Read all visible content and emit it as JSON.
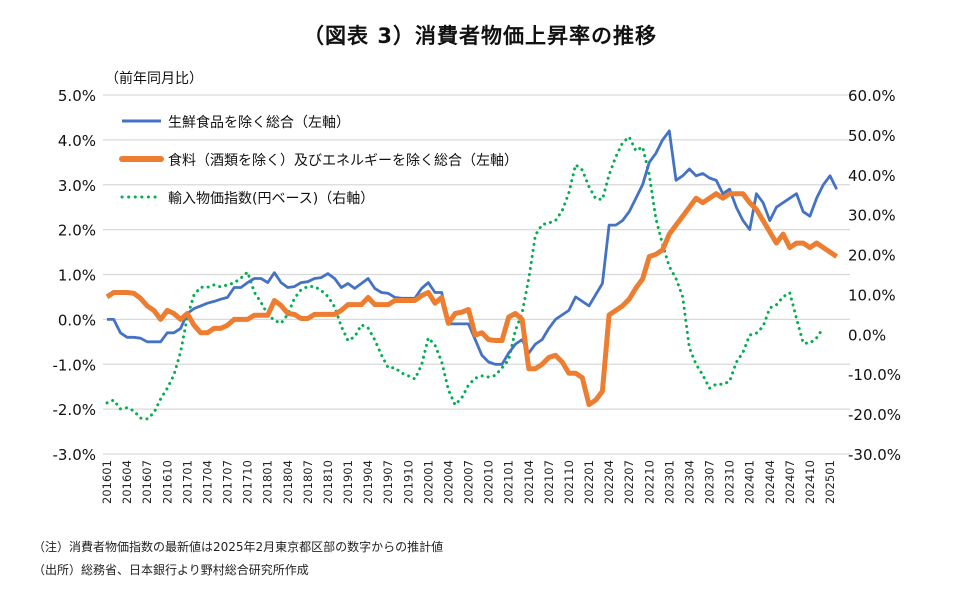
{
  "chart_data": {
    "type": "line",
    "title": "（図表 3）消費者物価上昇率の推移",
    "unit_label": "（前年同月比）",
    "xlabel": "",
    "ylabel_left": "",
    "ylabel_right": "",
    "grid": true,
    "legend_position": "top-left",
    "y_left": {
      "min": -3.0,
      "max": 5.0,
      "step": 1.0,
      "tick_labels": [
        "5.0%",
        "4.0%",
        "3.0%",
        "2.0%",
        "1.0%",
        "0.0%",
        "-1.0%",
        "-2.0%",
        "-3.0%"
      ]
    },
    "y_right": {
      "min": -30.0,
      "max": 60.0,
      "step": 10.0,
      "tick_labels": [
        "60.0%",
        "50.0%",
        "40.0%",
        "30.0%",
        "20.0%",
        "10.0%",
        "0.0%",
        "-10.0%",
        "-20.0%",
        "-30.0%"
      ]
    },
    "x_tick_labels": [
      "201601",
      "201604",
      "201607",
      "201610",
      "201701",
      "201704",
      "201707",
      "201710",
      "201801",
      "201804",
      "201807",
      "201810",
      "201901",
      "201904",
      "201907",
      "201910",
      "202001",
      "202004",
      "202007",
      "202010",
      "202101",
      "202104",
      "202107",
      "202110",
      "202201",
      "202204",
      "202207",
      "202210",
      "202301",
      "202304",
      "202307",
      "202310",
      "202401",
      "202404",
      "202407",
      "202410",
      "202501"
    ],
    "x_start": "201601",
    "x_end": "202502",
    "series": [
      {
        "name": "生鮮食品を除く総合（左軸）",
        "axis": "left",
        "color": "#4472C4",
        "style": "solid",
        "values": [
          0,
          0,
          -0.3,
          -0.4,
          -0.4,
          -0.42,
          -0.5,
          -0.5,
          -0.5,
          -0.3,
          -0.3,
          -0.2,
          0.13,
          0.24,
          0.3,
          0.36,
          0.4,
          0.45,
          0.49,
          0.71,
          0.71,
          0.82,
          0.91,
          0.91,
          0.82,
          1.04,
          0.82,
          0.71,
          0.73,
          0.82,
          0.84,
          0.91,
          0.93,
          1.02,
          0.91,
          0.71,
          0.8,
          0.69,
          0.8,
          0.91,
          0.69,
          0.6,
          0.58,
          0.49,
          0.47,
          0.47,
          0.47,
          0.69,
          0.82,
          0.6,
          0.6,
          -0.1,
          -0.1,
          -0.1,
          -0.1,
          -0.45,
          -0.8,
          -0.95,
          -1.0,
          -1.0,
          -0.75,
          -0.55,
          -0.45,
          -0.75,
          -0.55,
          -0.45,
          -0.2,
          0.0,
          0.1,
          0.2,
          0.5,
          0.4,
          0.3,
          0.55,
          0.8,
          2.1,
          2.1,
          2.2,
          2.4,
          2.7,
          3.0,
          3.5,
          3.7,
          4.0,
          4.2,
          3.1,
          3.2,
          3.35,
          3.2,
          3.25,
          3.15,
          3.1,
          2.8,
          2.9,
          2.5,
          2.2,
          2.0,
          2.8,
          2.6,
          2.2,
          2.5,
          2.6,
          2.7,
          2.8,
          2.4,
          2.3,
          2.7,
          3.0,
          3.2,
          2.9
        ]
      },
      {
        "name": "食料（酒類を除く）及びエネルギーを除く総合（左軸）",
        "axis": "left",
        "color": "#ED7D31",
        "style": "solid-thick",
        "values": [
          0.5,
          0.6,
          0.6,
          0.6,
          0.58,
          0.47,
          0.3,
          0.2,
          0,
          0.2,
          0.13,
          0,
          0.13,
          -0.13,
          -0.3,
          -0.3,
          -0.2,
          -0.2,
          -0.13,
          0.0,
          0.0,
          0.0,
          0.09,
          0.09,
          0.09,
          0.42,
          0.31,
          0.13,
          0.11,
          0.02,
          0.02,
          0.11,
          0.11,
          0.11,
          0.11,
          0.2,
          0.33,
          0.33,
          0.33,
          0.49,
          0.33,
          0.33,
          0.33,
          0.42,
          0.42,
          0.42,
          0.42,
          0.53,
          0.6,
          0.36,
          0.49,
          -0.09,
          0.13,
          0.16,
          0.22,
          -0.35,
          -0.3,
          -0.45,
          -0.47,
          -0.47,
          0.05,
          0.13,
          0.0,
          -1.1,
          -1.1,
          -1.0,
          -0.85,
          -0.8,
          -0.95,
          -1.2,
          -1.2,
          -1.3,
          -1.9,
          -1.8,
          -1.6,
          0.1,
          0.2,
          0.3,
          0.45,
          0.7,
          0.9,
          1.4,
          1.45,
          1.55,
          1.9,
          2.1,
          2.3,
          2.5,
          2.7,
          2.6,
          2.7,
          2.8,
          2.7,
          2.8,
          2.8,
          2.8,
          2.6,
          2.45,
          2.2,
          1.95,
          1.7,
          1.9,
          1.6,
          1.7,
          1.7,
          1.6,
          1.7,
          1.6,
          1.5,
          1.4
        ]
      },
      {
        "name": "輸入物価指数(円ベース)（右軸）",
        "axis": "right",
        "color": "#00B050",
        "style": "dotted",
        "values": [
          -17.2,
          -16.5,
          -18.7,
          -18.4,
          -19.2,
          -21,
          -21.2,
          -19.7,
          -16.2,
          -13.5,
          -10.2,
          -4.4,
          4.3,
          9.9,
          11.8,
          11.8,
          12.4,
          11.9,
          12.4,
          12.9,
          14.1,
          15.6,
          10.6,
          8,
          5,
          3.5,
          2.8,
          5,
          9,
          11.2,
          12,
          12,
          11,
          9.5,
          6.9,
          2,
          -1.6,
          -0.6,
          2.4,
          1.6,
          -1.4,
          -5.2,
          -8.4,
          -8.4,
          -9.7,
          -10.4,
          -11.2,
          -7.7,
          -0.9,
          -2.7,
          -6.9,
          -13.9,
          -17.7,
          -15.9,
          -12.7,
          -11,
          -10.4,
          -10.7,
          -10.3,
          -8.4,
          -6.4,
          1,
          5.3,
          14,
          24.9,
          27.5,
          27.9,
          28.5,
          31,
          35.5,
          42.5,
          41.2,
          37,
          34,
          33.8,
          40,
          44.5,
          48,
          49.5,
          46,
          47,
          40,
          29,
          22.5,
          17,
          14,
          9.4,
          -3.4,
          -7.5,
          -10.2,
          -13.5,
          -12.5,
          -12.5,
          -11.8,
          -7,
          -4.5,
          -0.2,
          0.3,
          2,
          6.6,
          7.4,
          9.4,
          10.4,
          4,
          -2.2,
          -2.2,
          -0.9,
          1.6,
          null,
          null
        ]
      }
    ]
  },
  "notes": {
    "note1": "（注）消費者物価指数の最新値は2025年2月東京都区部の数字からの推計値",
    "note2": "（出所）総務省、日本銀行より野村総合研究所作成"
  }
}
